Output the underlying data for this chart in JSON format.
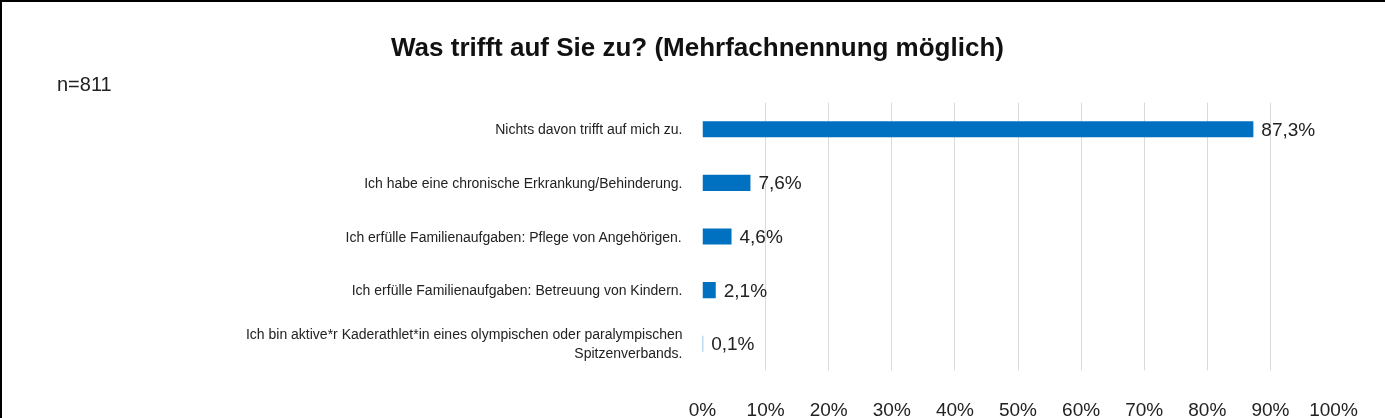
{
  "chart_data": {
    "type": "bar",
    "orientation": "horizontal",
    "title": "Was trifft auf Sie zu? (Mehrfachnennung möglich)",
    "annotations": [
      "n=811"
    ],
    "categories": [
      "Nichts davon trifft auf mich zu.",
      "Ich habe eine chronische Erkrankung/Behinderung.",
      "Ich erfülle Familienaufgaben: Pflege von Angehörigen.",
      "Ich erfülle Familienaufgaben: Betreuung von Kindern.",
      "Ich bin aktive*r Kaderathlet*in eines olympischen oder paralympischen Spitzenverbands."
    ],
    "values": [
      87.3,
      7.6,
      4.6,
      2.1,
      0.1
    ],
    "value_labels": [
      "87,3%",
      "7,6%",
      "4,6%",
      "2,1%",
      "0,1%"
    ],
    "color": "#0070c0",
    "xlim": [
      0,
      100
    ],
    "xticks": [
      {
        "value": 0,
        "label": "0%"
      },
      {
        "value": 10,
        "label": "10%"
      },
      {
        "value": 20,
        "label": "20%"
      },
      {
        "value": 30,
        "label": "30%"
      },
      {
        "value": 40,
        "label": "40%"
      },
      {
        "value": 50,
        "label": "50%"
      },
      {
        "value": 60,
        "label": "60%"
      },
      {
        "value": 70,
        "label": "70%"
      },
      {
        "value": 80,
        "label": "80%"
      },
      {
        "value": 90,
        "label": "90%"
      },
      {
        "value": 100,
        "label": "100%"
      }
    ],
    "grid": "x"
  }
}
